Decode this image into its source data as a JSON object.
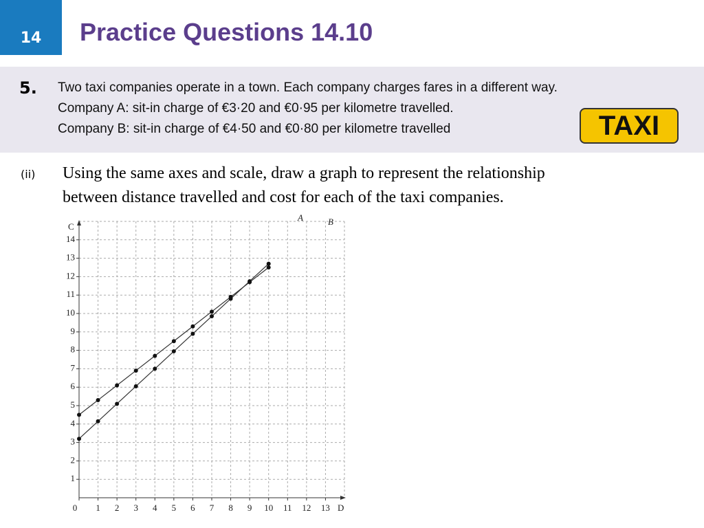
{
  "header": {
    "number": "14",
    "title": "Practice Questions 14.10"
  },
  "question": {
    "number": "5.",
    "lines": [
      "Two taxi companies operate in a town. Each company charges fares in a different way.",
      "Company A: sit-in charge of €3·20 and €0·95 per kilometre travelled.",
      "Company B: sit-in charge of €4·50 and €0·80 per kilometre travelled"
    ],
    "badge": "TAXI"
  },
  "part": {
    "label": "(ii)",
    "lines": [
      "Using the same axes and scale, draw a graph to represent the relationship",
      "between distance travelled and cost for each of the taxi companies."
    ]
  },
  "chart_data": {
    "type": "line",
    "x_label": "D",
    "y_label": "C",
    "x": [
      0,
      1,
      2,
      3,
      4,
      5,
      6,
      7,
      8,
      9,
      10
    ],
    "series": [
      {
        "name": "A",
        "color": "#333333",
        "values": [
          3.2,
          4.15,
          5.1,
          6.05,
          7,
          7.95,
          8.9,
          9.85,
          10.8,
          11.75,
          12.7
        ]
      },
      {
        "name": "B",
        "color": "#333333",
        "values": [
          4.5,
          5.3,
          6.1,
          6.9,
          7.7,
          8.5,
          9.3,
          10.1,
          10.9,
          11.7,
          12.5
        ]
      }
    ],
    "xlim": [
      0,
      14
    ],
    "ylim": [
      0,
      15
    ],
    "xticks": [
      0,
      1,
      2,
      3,
      4,
      5,
      6,
      7,
      8,
      9,
      10,
      11,
      12,
      13
    ],
    "yticks": [
      1,
      2,
      3,
      4,
      5,
      6,
      7,
      8,
      9,
      10,
      11,
      12,
      13,
      14
    ],
    "grid": true
  }
}
